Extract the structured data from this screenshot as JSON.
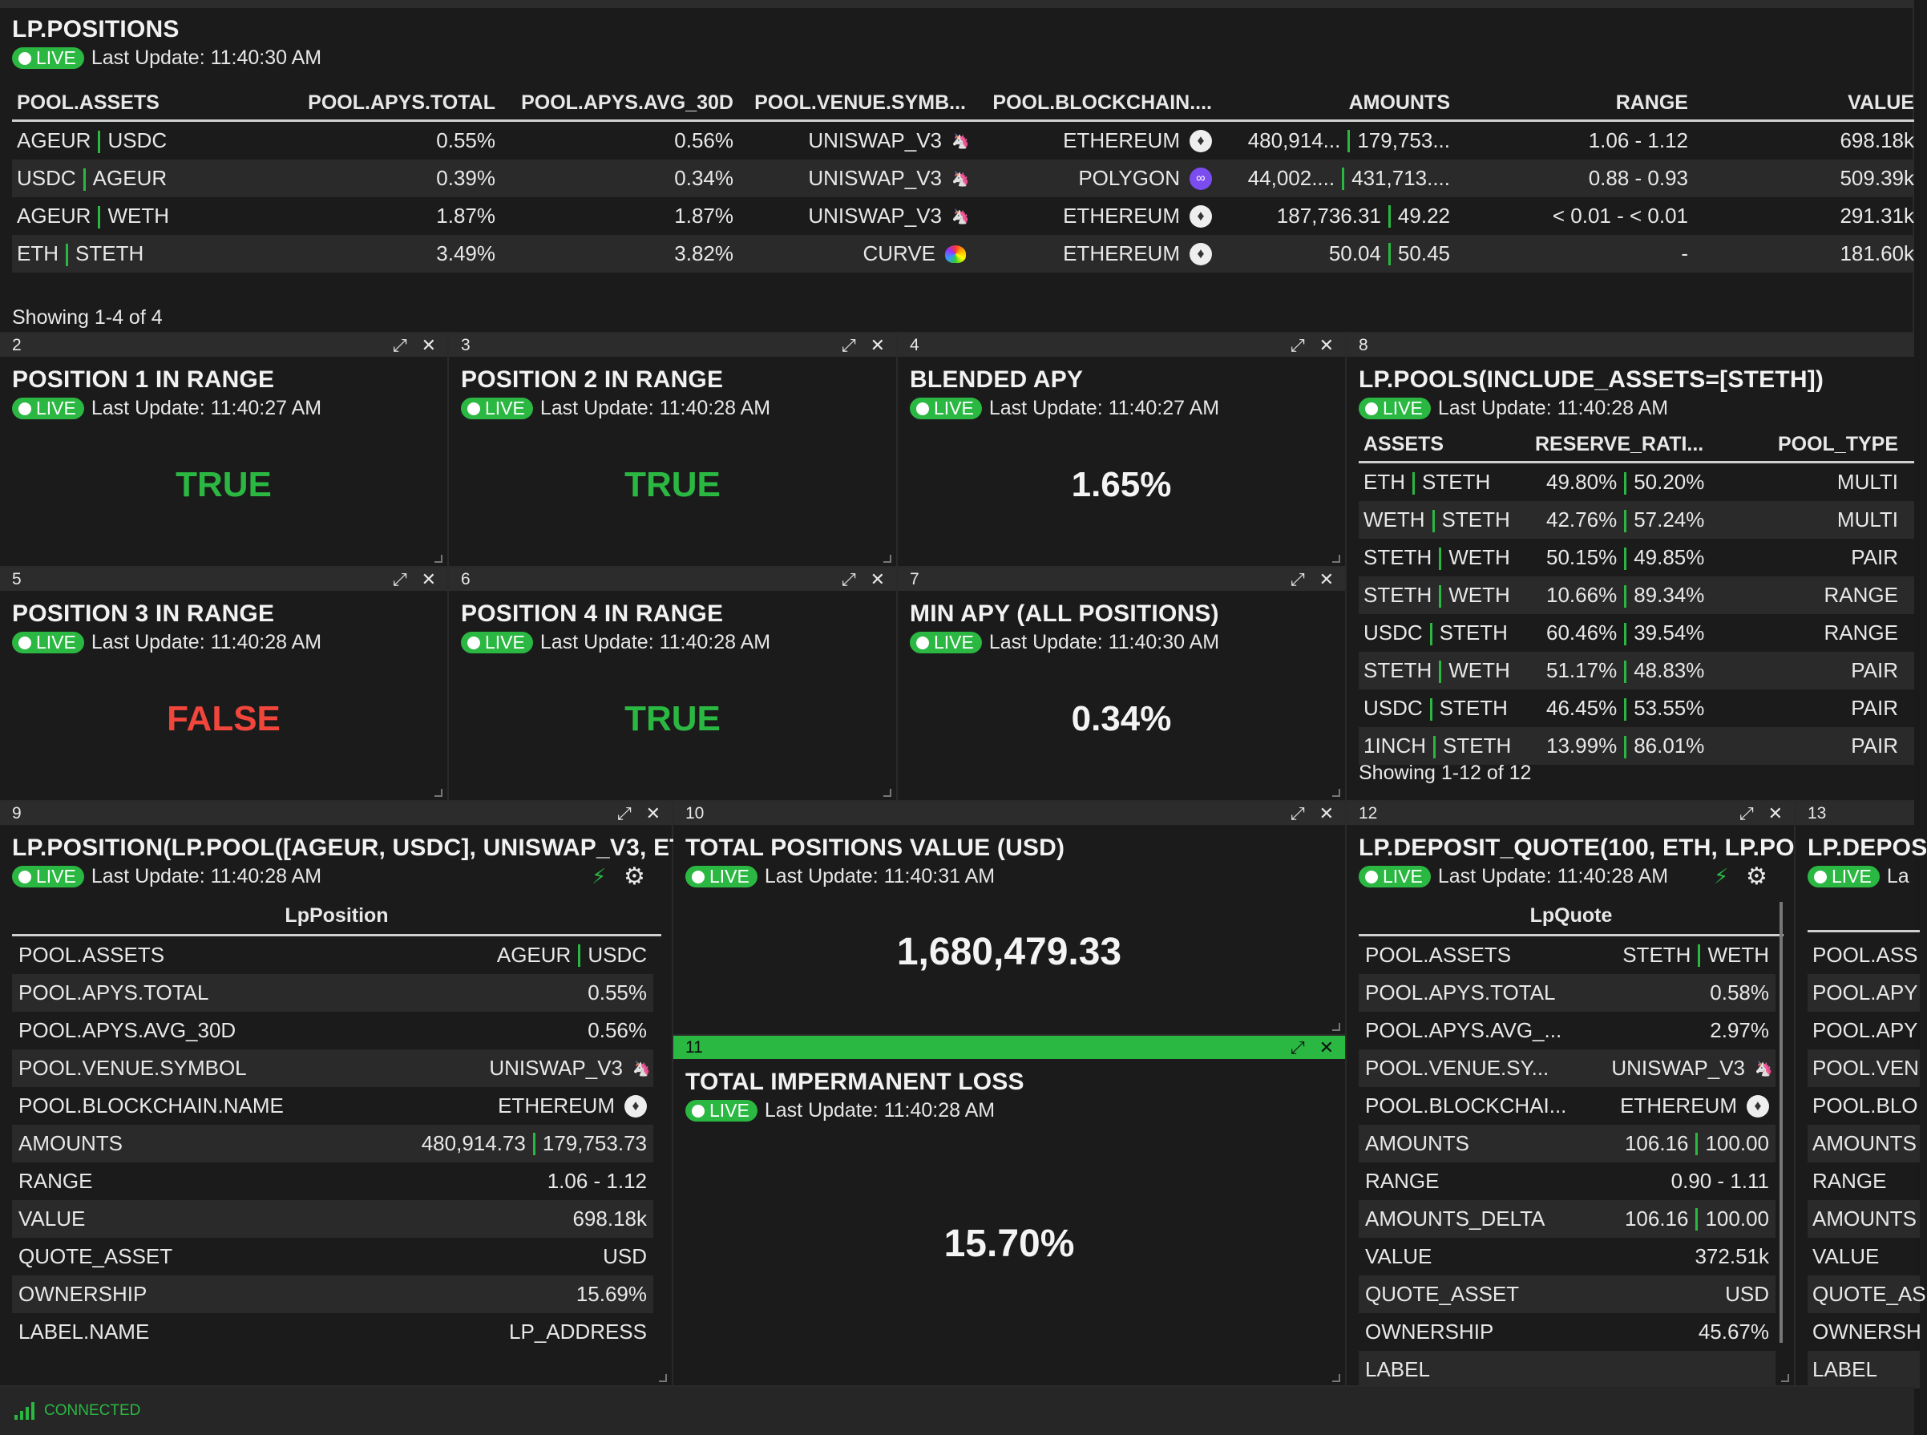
{
  "common": {
    "live_label": "LIVE"
  },
  "lp_positions": {
    "title": "LP.POSITIONS",
    "last_update": "Last Update: 11:40:30 AM",
    "columns": [
      "POOL.ASSETS",
      "POOL.APYS.TOTAL",
      "POOL.APYS.AVG_30D",
      "POOL.VENUE.SYMB...",
      "POOL.BLOCKCHAIN....",
      "AMOUNTS",
      "RANGE",
      "VALUE"
    ],
    "rows": [
      {
        "a1": "AGEUR",
        "a2": "USDC",
        "apy_total": "0.55%",
        "apy_avg": "0.56%",
        "venue": "UNISWAP_V3",
        "venue_icon": "uniswap-icon",
        "chain": "ETHEREUM",
        "chain_icon": "ethereum-icon",
        "amt1": "480,914...",
        "amt2": "179,753...",
        "range": "1.06 - 1.12",
        "value": "698.18k"
      },
      {
        "a1": "USDC",
        "a2": "AGEUR",
        "apy_total": "0.39%",
        "apy_avg": "0.34%",
        "venue": "UNISWAP_V3",
        "venue_icon": "uniswap-icon",
        "chain": "POLYGON",
        "chain_icon": "polygon-icon",
        "amt1": "44,002....",
        "amt2": "431,713....",
        "range": "0.88 - 0.93",
        "value": "509.39k"
      },
      {
        "a1": "AGEUR",
        "a2": "WETH",
        "apy_total": "1.87%",
        "apy_avg": "1.87%",
        "venue": "UNISWAP_V3",
        "venue_icon": "uniswap-icon",
        "chain": "ETHEREUM",
        "chain_icon": "ethereum-icon",
        "amt1": "187,736.31",
        "amt2": "49.22",
        "range": "< 0.01 - < 0.01",
        "value": "291.31k"
      },
      {
        "a1": "ETH",
        "a2": "STETH",
        "apy_total": "3.49%",
        "apy_avg": "3.82%",
        "venue": "CURVE",
        "venue_icon": "curve-icon",
        "chain": "ETHEREUM",
        "chain_icon": "ethereum-icon",
        "amt1": "50.04",
        "amt2": "50.45",
        "range": "-",
        "value": "181.60k"
      }
    ],
    "showing": "Showing 1-4 of 4"
  },
  "panel2": {
    "num": "2",
    "title": "POSITION 1 IN RANGE",
    "last_update": "Last Update: 11:40:27 AM",
    "value": "TRUE"
  },
  "panel3": {
    "num": "3",
    "title": "POSITION 2 IN RANGE",
    "last_update": "Last Update: 11:40:28 AM",
    "value": "TRUE"
  },
  "panel4": {
    "num": "4",
    "title": "BLENDED APY",
    "last_update": "Last Update: 11:40:27 AM",
    "value": "1.65%"
  },
  "panel5": {
    "num": "5",
    "title": "POSITION 3 IN RANGE",
    "last_update": "Last Update: 11:40:28 AM",
    "value": "FALSE"
  },
  "panel6": {
    "num": "6",
    "title": "POSITION 4 IN RANGE",
    "last_update": "Last Update: 11:40:28 AM",
    "value": "TRUE"
  },
  "panel7": {
    "num": "7",
    "title": "MIN APY (ALL POSITIONS)",
    "last_update": "Last Update: 11:40:30 AM",
    "value": "0.34%"
  },
  "panel8": {
    "num": "8",
    "title": "LP.POOLS(INCLUDE_ASSETS=[STETH])",
    "last_update": "Last Update: 11:40:28 AM",
    "columns": [
      "ASSETS",
      "RESERVE_RATI...",
      "POOL_TYPE"
    ],
    "rows": [
      {
        "a1": "ETH",
        "a2": "STETH",
        "r1": "49.80%",
        "r2": "50.20%",
        "type": "MULTI"
      },
      {
        "a1": "WETH",
        "a2": "STETH",
        "r1": "42.76%",
        "r2": "57.24%",
        "type": "MULTI"
      },
      {
        "a1": "STETH",
        "a2": "WETH",
        "r1": "50.15%",
        "r2": "49.85%",
        "type": "PAIR"
      },
      {
        "a1": "STETH",
        "a2": "WETH",
        "r1": "10.66%",
        "r2": "89.34%",
        "type": "RANGE"
      },
      {
        "a1": "USDC",
        "a2": "STETH",
        "r1": "60.46%",
        "r2": "39.54%",
        "type": "RANGE"
      },
      {
        "a1": "STETH",
        "a2": "WETH",
        "r1": "51.17%",
        "r2": "48.83%",
        "type": "PAIR"
      },
      {
        "a1": "USDC",
        "a2": "STETH",
        "r1": "46.45%",
        "r2": "53.55%",
        "type": "PAIR"
      },
      {
        "a1": "1INCH",
        "a2": "STETH",
        "r1": "13.99%",
        "r2": "86.01%",
        "type": "PAIR"
      }
    ],
    "showing": "Showing 1-12 of 12"
  },
  "panel9": {
    "num": "9",
    "title": "LP.POSITION(LP.POOL([AGEUR, USDC], UNISWAP_V3, ET",
    "last_update": "Last Update: 11:40:28 AM",
    "subtitle": "LpPosition",
    "rows": [
      {
        "k": "POOL.ASSETS",
        "v1": "AGEUR",
        "v2": "USDC"
      },
      {
        "k": "POOL.APYS.TOTAL",
        "v": "0.55%"
      },
      {
        "k": "POOL.APYS.AVG_30D",
        "v": "0.56%"
      },
      {
        "k": "POOL.VENUE.SYMBOL",
        "v": "UNISWAP_V3",
        "icon": "uniswap-icon"
      },
      {
        "k": "POOL.BLOCKCHAIN.NAME",
        "v": "ETHEREUM",
        "icon": "ethereum-icon"
      },
      {
        "k": "AMOUNTS",
        "v1": "480,914.73",
        "v2": "179,753.73"
      },
      {
        "k": "RANGE",
        "v": "1.06 - 1.12"
      },
      {
        "k": "VALUE",
        "v": "698.18k"
      },
      {
        "k": "QUOTE_ASSET",
        "v": "USD"
      },
      {
        "k": "OWNERSHIP",
        "v": "15.69%"
      },
      {
        "k": "LABEL.NAME",
        "v": "LP_ADDRESS"
      }
    ]
  },
  "panel10": {
    "num": "10",
    "title": "TOTAL POSITIONS VALUE (USD)",
    "last_update": "Last Update: 11:40:31 AM",
    "value": "1,680,479.33"
  },
  "panel11": {
    "num": "11",
    "title": "TOTAL IMPERMANENT LOSS",
    "last_update": "Last Update: 11:40:28 AM",
    "value": "15.70%"
  },
  "panel12": {
    "num": "12",
    "title": "LP.DEPOSIT_QUOTE(100, ETH, LP.PO",
    "last_update": "Last Update: 11:40:28 AM",
    "subtitle": "LpQuote",
    "rows": [
      {
        "k": "POOL.ASSETS",
        "v1": "STETH",
        "v2": "WETH"
      },
      {
        "k": "POOL.APYS.TOTAL",
        "v": "0.58%"
      },
      {
        "k": "POOL.APYS.AVG_...",
        "v": "2.97%"
      },
      {
        "k": "POOL.VENUE.SY...",
        "v": "UNISWAP_V3",
        "icon": "uniswap-icon"
      },
      {
        "k": "POOL.BLOCKCHAI...",
        "v": "ETHEREUM",
        "icon": "ethereum-icon"
      },
      {
        "k": "AMOUNTS",
        "v1": "106.16",
        "v2": "100.00"
      },
      {
        "k": "RANGE",
        "v": "0.90 - 1.11"
      },
      {
        "k": "AMOUNTS_DELTA",
        "v1": "106.16",
        "v2": "100.00"
      },
      {
        "k": "VALUE",
        "v": "372.51k"
      },
      {
        "k": "QUOTE_ASSET",
        "v": "USD"
      },
      {
        "k": "OWNERSHIP",
        "v": "45.67%"
      },
      {
        "k": "LABEL",
        "v": ""
      }
    ]
  },
  "panel13": {
    "num": "13",
    "title": "LP.DEPOS",
    "last_update": "La",
    "rows": [
      "POOL.ASS",
      "POOL.APY",
      "POOL.APY",
      "POOL.VEN",
      "POOL.BLO",
      "AMOUNTS",
      "RANGE",
      "AMOUNTS",
      "VALUE",
      "QUOTE_AS",
      "OWNERSH",
      "LABEL"
    ]
  },
  "footer": {
    "status": "CONNECTED"
  },
  "colors": {
    "accent": "#2bb842",
    "true": "#2bb842",
    "false": "#f0463c"
  }
}
